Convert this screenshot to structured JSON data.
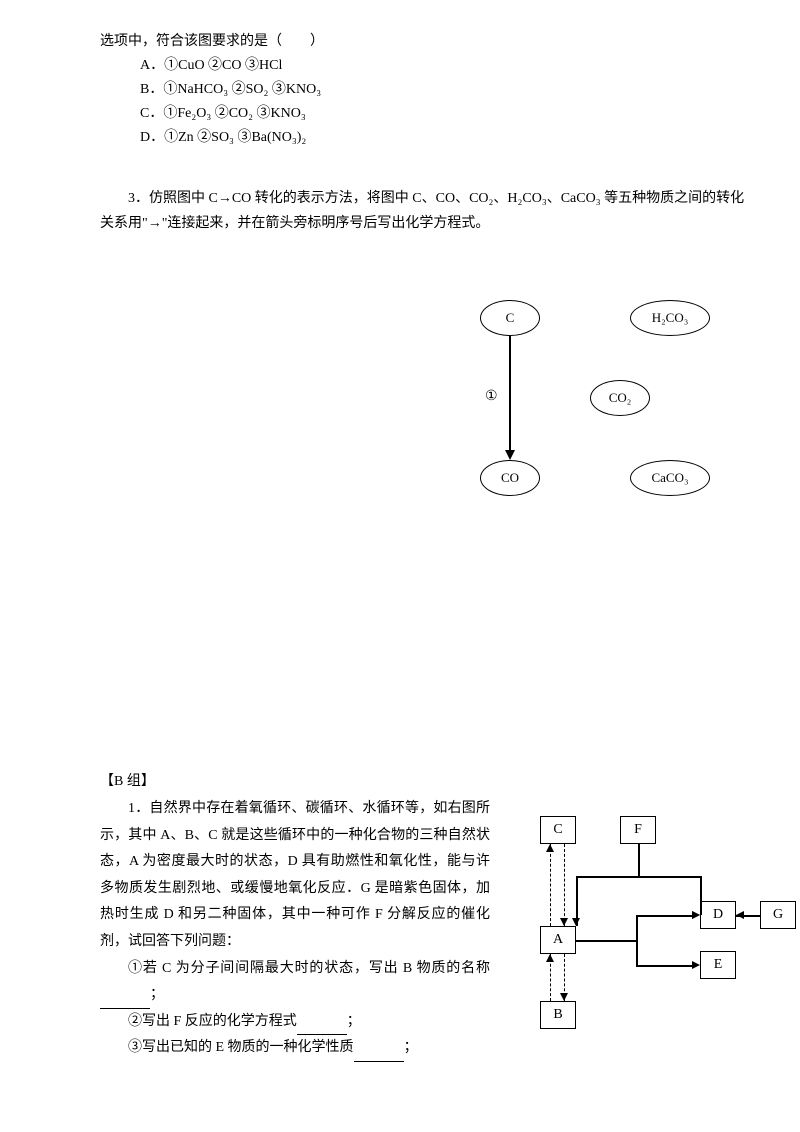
{
  "q2": {
    "stem": "选项中，符合该图要求的是（　　）",
    "options": {
      "A": "A．①CuO ②CO ③HCl",
      "B": "B．①NaHCO₃ ②SO₂ ③KNO₃",
      "C": "C．①Fe₂O₃ ②CO₂ ③KNO₃",
      "D": "D．①Zn ②SO₃ ③Ba(NO₃)₂"
    }
  },
  "q3": {
    "stem": "3．仿照图中 C→CO 转化的表示方法，将图中 C、CO、CO₂、H₂CO₃、CaCO₃ 等五种物质之间的转化关系用\"→\"连接起来，并在箭头旁标明序号后写出化学方程式。"
  },
  "diagram1": {
    "nodes": {
      "C": "C",
      "CO": "CO",
      "CO2": "CO₂",
      "H2CO3": "H₂CO₃",
      "CaCO3": "CaCO₃"
    },
    "arrow_label": "①"
  },
  "groupB": {
    "title": "【B 组】",
    "q1": {
      "p1": "1．自然界中存在着氧循环、碳循环、水循环等，如右图所示，其中 A、B、C 就是这些循环中的一种化合物的三种自然状态，A 为密度最大时的状态，D 具有助燃性和氧化性，能与许多物质发生剧烈地、或缓慢地氧化反应．G 是暗紫色固体，加热时生成 D 和另二种固体，其中一种可作 F 分解反应的催化剂，试回答下列问题：",
      "p2": "①若 C 为分子间间隔最大时的状态，写出 B 物质的名称",
      "p2_tail": "；",
      "p3": "②写出 F 反应的化学方程式",
      "p3_tail": "；",
      "p4": "③写出已知的 E 物质的一种化学性质",
      "p4_tail": "；"
    }
  },
  "diagram2": {
    "nodes": {
      "A": "A",
      "B": "B",
      "C": "C",
      "D": "D",
      "E": "E",
      "F": "F",
      "G": "G"
    }
  },
  "colors": {
    "text": "#000000",
    "background": "#ffffff",
    "border": "#000000"
  }
}
